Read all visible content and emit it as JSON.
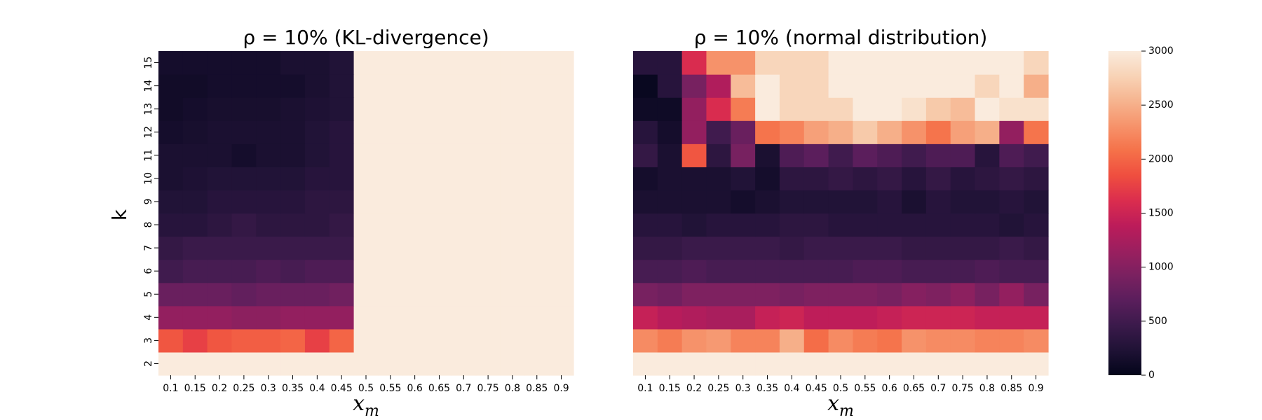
{
  "chart_data": [
    {
      "type": "heatmap",
      "title": "ρ = 10%  (KL-divergence)",
      "xlabel": "x_m",
      "ylabel": "k",
      "x_categories": [
        "0.1",
        "0.15",
        "0.2",
        "0.25",
        "0.3",
        "0.35",
        "0.4",
        "0.45",
        "0.5",
        "0.55",
        "0.6",
        "0.65",
        "0.7",
        "0.75",
        "0.8",
        "0.85",
        "0.9"
      ],
      "y_categories": [
        "2",
        "3",
        "4",
        "5",
        "6",
        "7",
        "8",
        "9",
        "10",
        "11",
        "12",
        "13",
        "14",
        "15"
      ],
      "zlim": [
        0,
        3000
      ],
      "values": [
        [
          3000,
          3000,
          3000,
          3000,
          3000,
          3000,
          3000,
          3000,
          3000,
          3000,
          3000,
          3000,
          3000,
          3000,
          3000,
          3000,
          3000
        ],
        [
          1900,
          1750,
          1900,
          1950,
          1950,
          2000,
          1750,
          2000,
          3000,
          3000,
          3000,
          3000,
          3000,
          3000,
          3000,
          3000,
          3000
        ],
        [
          1100,
          1100,
          1100,
          1050,
          1050,
          1100,
          1100,
          1100,
          3000,
          3000,
          3000,
          3000,
          3000,
          3000,
          3000,
          3000,
          3000
        ],
        [
          800,
          800,
          800,
          750,
          800,
          800,
          800,
          850,
          3000,
          3000,
          3000,
          3000,
          3000,
          3000,
          3000,
          3000,
          3000
        ],
        [
          500,
          550,
          550,
          550,
          600,
          550,
          600,
          600,
          3000,
          3000,
          3000,
          3000,
          3000,
          3000,
          3000,
          3000,
          3000
        ],
        [
          400,
          450,
          450,
          450,
          450,
          450,
          450,
          450,
          3000,
          3000,
          3000,
          3000,
          3000,
          3000,
          3000,
          3000,
          3000
        ],
        [
          300,
          300,
          350,
          400,
          350,
          350,
          350,
          400,
          3000,
          3000,
          3000,
          3000,
          3000,
          3000,
          3000,
          3000,
          3000
        ],
        [
          250,
          250,
          300,
          300,
          300,
          300,
          350,
          350,
          3000,
          3000,
          3000,
          3000,
          3000,
          3000,
          3000,
          3000,
          3000
        ],
        [
          200,
          220,
          250,
          250,
          250,
          250,
          300,
          300,
          3000,
          3000,
          3000,
          3000,
          3000,
          3000,
          3000,
          3000,
          3000
        ],
        [
          200,
          200,
          200,
          150,
          200,
          200,
          250,
          300,
          3000,
          3000,
          3000,
          3000,
          3000,
          3000,
          3000,
          3000,
          3000
        ],
        [
          150,
          170,
          200,
          200,
          200,
          200,
          250,
          300,
          3000,
          3000,
          3000,
          3000,
          3000,
          3000,
          3000,
          3000,
          3000
        ],
        [
          120,
          150,
          170,
          170,
          170,
          200,
          220,
          250,
          3000,
          3000,
          3000,
          3000,
          3000,
          3000,
          3000,
          3000,
          3000
        ],
        [
          120,
          120,
          150,
          150,
          150,
          150,
          200,
          250,
          3000,
          3000,
          3000,
          3000,
          3000,
          3000,
          3000,
          3000,
          3000
        ],
        [
          150,
          150,
          150,
          150,
          150,
          200,
          200,
          250,
          3000,
          3000,
          3000,
          3000,
          3000,
          3000,
          3000,
          3000,
          3000
        ]
      ]
    },
    {
      "type": "heatmap",
      "title": "ρ = 10%  (normal distribution)",
      "xlabel": "x_m",
      "ylabel": "",
      "x_categories": [
        "0.1",
        "0.15",
        "0.2",
        "0.25",
        "0.3",
        "0.35",
        "0.4",
        "0.45",
        "0.5",
        "0.55",
        "0.6",
        "0.65",
        "0.7",
        "0.75",
        "0.8",
        "0.85",
        "0.9"
      ],
      "y_categories": [
        "2",
        "3",
        "4",
        "5",
        "6",
        "7",
        "8",
        "9",
        "10",
        "11",
        "12",
        "13",
        "14",
        "15"
      ],
      "zlim": [
        0,
        3000
      ],
      "values": [
        [
          3000,
          3000,
          3000,
          3000,
          3000,
          3000,
          3000,
          3000,
          3000,
          3000,
          3000,
          3000,
          3000,
          3000,
          3000,
          3000,
          3000
        ],
        [
          2250,
          2150,
          2300,
          2350,
          2200,
          2200,
          2500,
          2050,
          2250,
          2150,
          2100,
          2300,
          2250,
          2250,
          2200,
          2200,
          2250
        ],
        [
          1450,
          1350,
          1300,
          1250,
          1250,
          1450,
          1500,
          1400,
          1400,
          1400,
          1450,
          1500,
          1500,
          1500,
          1450,
          1450,
          1450
        ],
        [
          900,
          850,
          950,
          950,
          950,
          950,
          900,
          950,
          950,
          950,
          900,
          1000,
          950,
          1050,
          900,
          1100,
          900
        ],
        [
          550,
          550,
          600,
          550,
          550,
          550,
          550,
          550,
          550,
          600,
          600,
          550,
          550,
          550,
          600,
          550,
          550
        ],
        [
          400,
          400,
          450,
          450,
          450,
          450,
          400,
          450,
          450,
          450,
          450,
          400,
          400,
          400,
          400,
          450,
          400
        ],
        [
          300,
          300,
          250,
          300,
          300,
          300,
          350,
          350,
          300,
          300,
          300,
          300,
          300,
          300,
          300,
          250,
          300
        ],
        [
          200,
          200,
          200,
          200,
          150,
          200,
          250,
          250,
          250,
          250,
          300,
          200,
          300,
          250,
          250,
          300,
          250
        ],
        [
          150,
          200,
          200,
          200,
          250,
          150,
          350,
          350,
          400,
          350,
          400,
          300,
          400,
          300,
          350,
          400,
          350
        ],
        [
          400,
          200,
          1900,
          350,
          900,
          200,
          600,
          700,
          500,
          700,
          600,
          500,
          600,
          600,
          300,
          600,
          500
        ],
        [
          300,
          150,
          1100,
          500,
          800,
          2100,
          2200,
          2400,
          2500,
          2700,
          2500,
          2300,
          2100,
          2400,
          2500,
          1100,
          2100
        ],
        [
          100,
          100,
          1100,
          1600,
          2150,
          3000,
          2800,
          2800,
          2800,
          3000,
          3000,
          2900,
          2700,
          2600,
          3000,
          2900,
          2900
        ],
        [
          50,
          300,
          900,
          1300,
          2600,
          3000,
          2800,
          2800,
          3000,
          3000,
          3000,
          3000,
          3000,
          3000,
          2800,
          3000,
          2500
        ],
        [
          300,
          300,
          1600,
          2300,
          2300,
          2800,
          2800,
          2800,
          3000,
          3000,
          3000,
          3000,
          3000,
          3000,
          3000,
          3000,
          2800
        ]
      ]
    }
  ],
  "colorbar": {
    "ticks": [
      "0",
      "500",
      "1000",
      "1500",
      "2000",
      "2500",
      "3000"
    ],
    "tick_values": [
      0,
      500,
      1000,
      1500,
      2000,
      2500,
      3000
    ]
  },
  "colors": {
    "colormap_stops": [
      "#03051a",
      "#1f1235",
      "#3b1a4b",
      "#5a1e5c",
      "#7a2160",
      "#9b1f5f",
      "#bc1c5a",
      "#db2d4e",
      "#ef4e3f",
      "#f57149",
      "#f6936b",
      "#f6b48f",
      "#f8d3b6",
      "#faebdd"
    ]
  }
}
